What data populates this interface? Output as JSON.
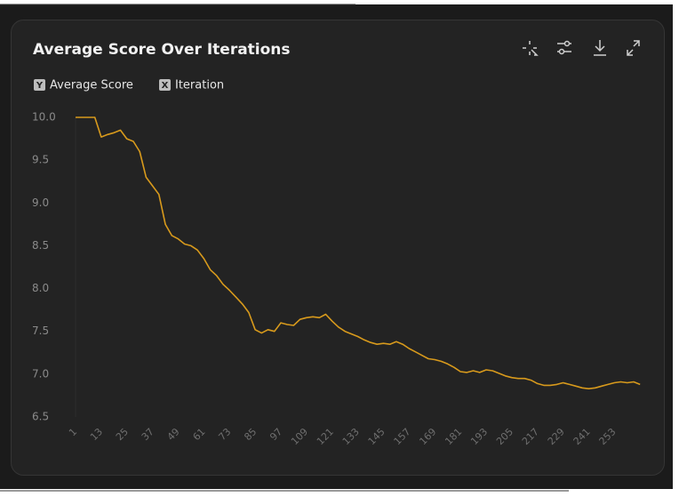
{
  "chart_data": {
    "type": "line",
    "title": "Average Score Over Iterations",
    "y_badge": "Y",
    "y_label": "Average Score",
    "x_badge": "X",
    "x_label": "Iteration",
    "x": [
      1,
      4,
      7,
      10,
      13,
      16,
      19,
      22,
      25,
      28,
      31,
      34,
      37,
      40,
      43,
      46,
      49,
      52,
      55,
      58,
      61,
      64,
      67,
      70,
      73,
      76,
      79,
      82,
      85,
      88,
      91,
      94,
      97,
      100,
      103,
      106,
      109,
      112,
      115,
      118,
      121,
      124,
      127,
      130,
      133,
      136,
      139,
      142,
      145,
      148,
      151,
      154,
      157,
      160,
      163,
      166,
      169,
      172,
      175,
      178,
      181,
      184,
      187,
      190,
      193,
      196,
      199,
      202,
      205,
      208,
      211,
      214,
      217,
      220,
      223,
      226,
      229,
      232,
      235,
      238,
      241,
      244,
      247,
      250,
      253,
      256,
      259,
      262,
      265
    ],
    "series": [
      {
        "name": "Average Score",
        "color": "#d89a1c",
        "values": [
          10.0,
          10.0,
          10.0,
          10.0,
          9.77,
          9.8,
          9.82,
          9.85,
          9.75,
          9.72,
          9.6,
          9.3,
          9.2,
          9.1,
          8.75,
          8.62,
          8.58,
          8.52,
          8.5,
          8.45,
          8.35,
          8.22,
          8.15,
          8.05,
          7.98,
          7.9,
          7.82,
          7.72,
          7.52,
          7.48,
          7.52,
          7.5,
          7.6,
          7.58,
          7.57,
          7.64,
          7.66,
          7.67,
          7.66,
          7.7,
          7.62,
          7.55,
          7.5,
          7.47,
          7.44,
          7.4,
          7.37,
          7.35,
          7.36,
          7.35,
          7.38,
          7.35,
          7.3,
          7.26,
          7.22,
          7.18,
          7.17,
          7.15,
          7.12,
          7.08,
          7.03,
          7.02,
          7.04,
          7.02,
          7.05,
          7.04,
          7.01,
          6.98,
          6.96,
          6.95,
          6.95,
          6.93,
          6.89,
          6.87,
          6.87,
          6.88,
          6.9,
          6.88,
          6.86,
          6.84,
          6.83,
          6.84,
          6.86,
          6.88,
          6.9,
          6.91,
          6.9,
          6.91,
          6.88
        ]
      }
    ],
    "xlim": [
      1,
      267
    ],
    "xticks": [
      1,
      13,
      25,
      37,
      49,
      61,
      73,
      85,
      97,
      109,
      121,
      133,
      145,
      157,
      169,
      181,
      193,
      205,
      217,
      229,
      241,
      253
    ],
    "ylim": [
      6.5,
      10.0
    ],
    "yticks": [
      {
        "value": 10,
        "label": "10.0"
      },
      9.5,
      {
        "value": 9,
        "label": "9.0"
      },
      8.5,
      {
        "value": 8,
        "label": "8.0"
      },
      7.5,
      {
        "value": 7,
        "label": "7.0"
      },
      6.5
    ],
    "grid": false
  }
}
